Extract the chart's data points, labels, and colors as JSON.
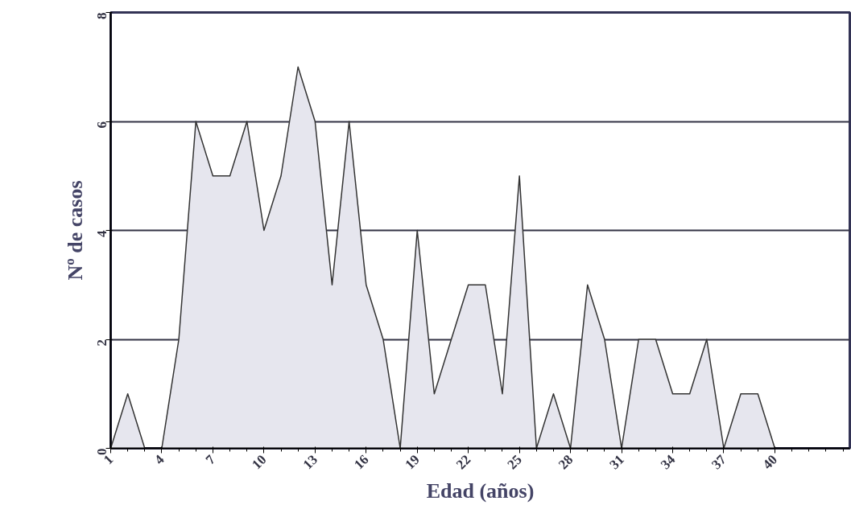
{
  "chart_data": {
    "type": "area",
    "xlabel": "Edad (años)",
    "ylabel": "Nº de casos",
    "x": [
      1,
      2,
      3,
      4,
      5,
      6,
      7,
      8,
      9,
      10,
      11,
      12,
      13,
      14,
      15,
      16,
      17,
      18,
      19,
      20,
      21,
      22,
      23,
      24,
      25,
      26,
      27,
      28,
      29,
      30,
      31,
      32,
      33,
      34,
      35,
      36,
      37,
      38,
      39,
      40
    ],
    "series": [
      {
        "color": "#e6e6ee",
        "values": [
          0,
          1,
          0,
          0,
          2,
          6,
          5,
          5,
          6,
          4,
          5,
          7,
          6,
          3,
          6,
          3,
          2,
          0,
          4,
          1,
          2,
          3,
          3,
          1,
          5,
          0,
          1,
          0,
          3,
          2,
          0,
          2,
          2,
          1,
          1,
          2,
          0,
          1,
          1,
          0
        ]
      }
    ],
    "xlim": [
      1,
      44.4
    ],
    "xticks": [
      1,
      4,
      7,
      10,
      13,
      16,
      19,
      22,
      25,
      28,
      31,
      34,
      37,
      40
    ],
    "ylim": [
      0,
      8
    ],
    "yticks": [
      0,
      2,
      4,
      6,
      8
    ],
    "grid": "y"
  }
}
